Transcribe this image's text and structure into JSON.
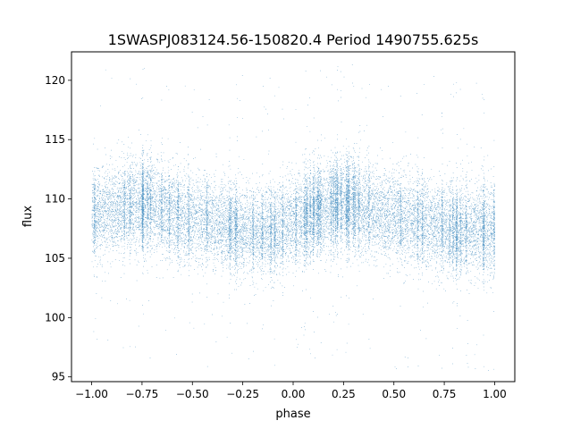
{
  "chart_data": {
    "type": "scatter",
    "title": "1SWASPJ083124.56-150820.4 Period 1490755.625s",
    "xlabel": "phase",
    "ylabel": "flux",
    "xlim": [
      -1.1,
      1.1
    ],
    "ylim": [
      94.6,
      122.4
    ],
    "x_ticks": [
      -1.0,
      -0.75,
      -0.5,
      -0.25,
      0.0,
      0.25,
      0.5,
      0.75,
      1.0
    ],
    "x_tick_labels": [
      "−1.00",
      "−0.75",
      "−0.50",
      "−0.25",
      "0.00",
      "0.25",
      "0.50",
      "0.75",
      "1.00"
    ],
    "y_ticks": [
      95,
      100,
      105,
      110,
      115,
      120
    ],
    "y_tick_labels": [
      "95",
      "100",
      "105",
      "110",
      "115",
      "120"
    ],
    "grid": false,
    "legend": "none",
    "marker_color": "#1f77b4",
    "phase_folded": true,
    "series": [
      {
        "trend_x": [
          -1.0,
          -0.9,
          -0.8,
          -0.7,
          -0.6,
          -0.5,
          -0.4,
          -0.3,
          -0.2,
          -0.1,
          0.0,
          0.1,
          0.2,
          0.3,
          0.4,
          0.5,
          0.6,
          0.7,
          0.8,
          0.9,
          1.0
        ],
        "trend_y": [
          108.5,
          109.0,
          109.6,
          109.4,
          108.7,
          108.3,
          108.0,
          107.6,
          107.2,
          107.3,
          108.0,
          108.9,
          109.6,
          109.5,
          108.9,
          108.4,
          108.1,
          107.7,
          107.3,
          107.2,
          107.5
        ],
        "scatter_sd": 1.8,
        "points": 22000
      }
    ]
  }
}
